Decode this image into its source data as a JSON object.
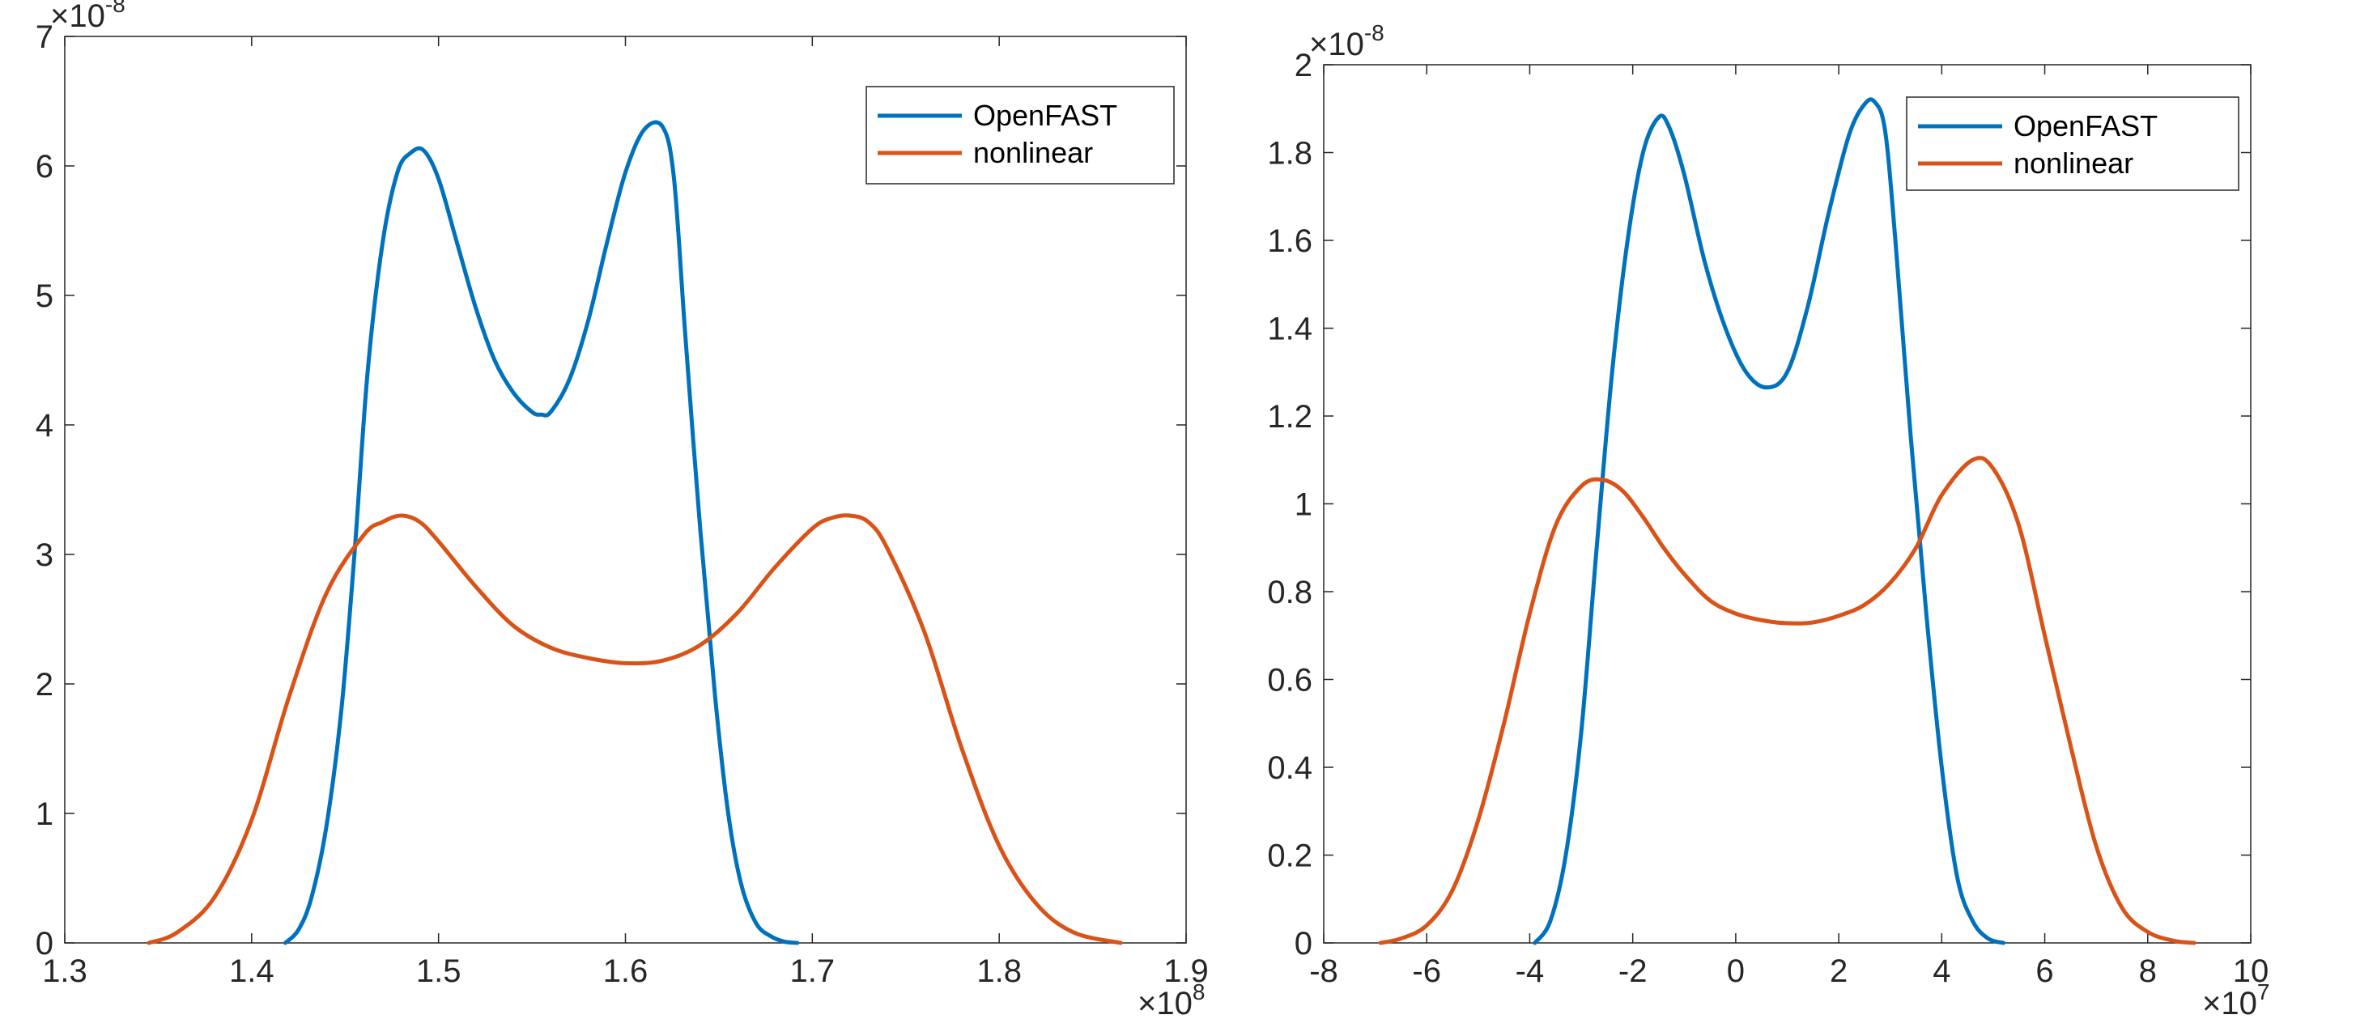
{
  "colors": {
    "series1": "#0072BD",
    "series2": "#D95319",
    "axis": "#262626"
  },
  "chart_data": [
    {
      "type": "line",
      "title": "",
      "xlabel": "",
      "ylabel": "",
      "xlim": [
        1.3,
        1.9
      ],
      "ylim": [
        0,
        7
      ],
      "xticks": [
        "1.3",
        "1.4",
        "1.5",
        "1.6",
        "1.7",
        "1.8",
        "1.9"
      ],
      "yticks": [
        "0",
        "1",
        "2",
        "3",
        "4",
        "5",
        "6",
        "7"
      ],
      "x_multiplier": {
        "base": "×10",
        "exponent": "8"
      },
      "y_multiplier": {
        "base": "×10",
        "exponent": "-8"
      },
      "legend_position": "top-right",
      "series": [
        {
          "name": "OpenFAST",
          "color": "#0072BD",
          "x": [
            1.418,
            1.425,
            1.432,
            1.44,
            1.448,
            1.455,
            1.462,
            1.47,
            1.478,
            1.485,
            1.492,
            1.5,
            1.51,
            1.52,
            1.53,
            1.54,
            1.55,
            1.555,
            1.56,
            1.57,
            1.58,
            1.59,
            1.6,
            1.61,
            1.62,
            1.626,
            1.632,
            1.64,
            1.648,
            1.655,
            1.662,
            1.67,
            1.678,
            1.685,
            1.692
          ],
          "y": [
            0.0,
            0.1,
            0.35,
            0.9,
            1.8,
            3.0,
            4.4,
            5.4,
            5.95,
            6.1,
            6.12,
            5.9,
            5.4,
            4.9,
            4.5,
            4.25,
            4.1,
            4.08,
            4.1,
            4.35,
            4.8,
            5.4,
            5.95,
            6.28,
            6.3,
            5.9,
            4.7,
            3.2,
            1.9,
            1.0,
            0.45,
            0.15,
            0.05,
            0.01,
            0.0
          ]
        },
        {
          "name": "nonlinear",
          "color": "#D95319",
          "x": [
            1.345,
            1.36,
            1.38,
            1.4,
            1.42,
            1.44,
            1.46,
            1.47,
            1.48,
            1.49,
            1.5,
            1.52,
            1.54,
            1.56,
            1.58,
            1.6,
            1.62,
            1.64,
            1.66,
            1.68,
            1.7,
            1.71,
            1.72,
            1.73,
            1.74,
            1.76,
            1.78,
            1.8,
            1.82,
            1.84,
            1.865
          ],
          "y": [
            0.0,
            0.08,
            0.35,
            0.95,
            1.9,
            2.7,
            3.15,
            3.25,
            3.3,
            3.25,
            3.1,
            2.75,
            2.45,
            2.28,
            2.2,
            2.16,
            2.18,
            2.3,
            2.55,
            2.9,
            3.2,
            3.28,
            3.3,
            3.25,
            3.05,
            2.4,
            1.5,
            0.75,
            0.3,
            0.08,
            0.0
          ]
        }
      ]
    },
    {
      "type": "line",
      "title": "",
      "xlabel": "",
      "ylabel": "",
      "xlim": [
        -8,
        10
      ],
      "ylim": [
        0,
        2
      ],
      "xticks": [
        "-8",
        "-6",
        "-4",
        "-2",
        "0",
        "2",
        "4",
        "6",
        "8",
        "10"
      ],
      "yticks": [
        "0",
        "0.2",
        "0.4",
        "0.6",
        "0.8",
        "1",
        "1.2",
        "1.4",
        "1.6",
        "1.8",
        "2"
      ],
      "x_multiplier": {
        "base": "×10",
        "exponent": "7"
      },
      "y_multiplier": {
        "base": "×10",
        "exponent": "-8"
      },
      "legend_position": "top-right",
      "series": [
        {
          "name": "OpenFAST",
          "color": "#0072BD",
          "x": [
            -3.9,
            -3.6,
            -3.3,
            -3.0,
            -2.7,
            -2.4,
            -2.1,
            -1.8,
            -1.5,
            -1.3,
            -1.0,
            -0.6,
            -0.2,
            0.2,
            0.6,
            1.0,
            1.4,
            1.8,
            2.2,
            2.5,
            2.7,
            2.9,
            3.1,
            3.4,
            3.7,
            4.0,
            4.3,
            4.6,
            4.9,
            5.2
          ],
          "y": [
            0.0,
            0.05,
            0.2,
            0.48,
            0.9,
            1.3,
            1.6,
            1.8,
            1.88,
            1.86,
            1.75,
            1.55,
            1.4,
            1.3,
            1.265,
            1.3,
            1.45,
            1.66,
            1.84,
            1.91,
            1.915,
            1.85,
            1.6,
            1.15,
            0.75,
            0.4,
            0.15,
            0.05,
            0.01,
            0.0
          ]
        },
        {
          "name": "nonlinear",
          "color": "#D95319",
          "x": [
            -6.9,
            -6.5,
            -6.0,
            -5.5,
            -5.0,
            -4.5,
            -4.0,
            -3.5,
            -3.0,
            -2.6,
            -2.2,
            -1.8,
            -1.4,
            -1.0,
            -0.5,
            0.0,
            0.5,
            1.0,
            1.5,
            2.0,
            2.5,
            3.0,
            3.5,
            4.0,
            4.6,
            5.0,
            5.5,
            6.0,
            6.5,
            7.0,
            7.5,
            8.0,
            8.5,
            8.9
          ],
          "y": [
            0.0,
            0.01,
            0.04,
            0.12,
            0.28,
            0.5,
            0.75,
            0.95,
            1.04,
            1.055,
            1.03,
            0.97,
            0.9,
            0.84,
            0.78,
            0.75,
            0.735,
            0.728,
            0.73,
            0.745,
            0.77,
            0.82,
            0.9,
            1.02,
            1.1,
            1.08,
            0.95,
            0.7,
            0.45,
            0.22,
            0.08,
            0.025,
            0.005,
            0.0
          ]
        }
      ]
    }
  ]
}
